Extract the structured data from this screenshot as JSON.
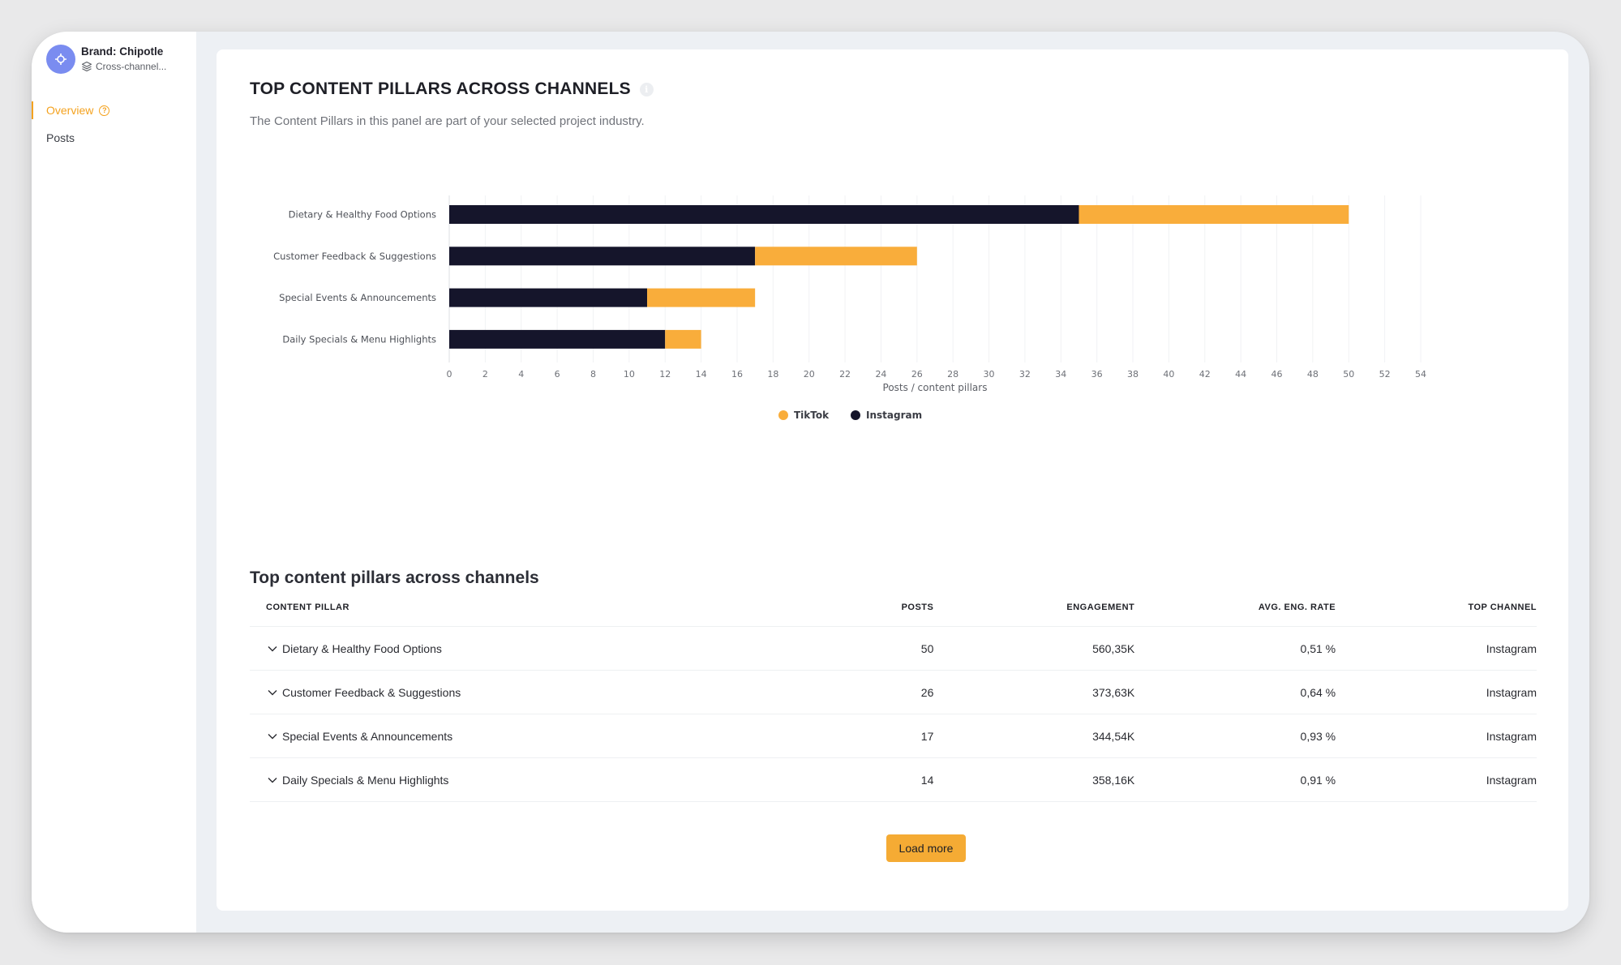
{
  "sidebar": {
    "brand_name": "Brand: Chipotle",
    "brand_sub": "Cross-channel...",
    "nav": [
      {
        "label": "Overview",
        "active": true
      },
      {
        "label": "Posts",
        "active": false
      }
    ]
  },
  "panel": {
    "title": "TOP CONTENT PILLARS ACROSS CHANNELS",
    "subtitle": "The Content Pillars in this panel are part of your selected project industry."
  },
  "chart_data": {
    "type": "bar",
    "orientation": "horizontal",
    "stacked": true,
    "categories": [
      "Dietary & Healthy Food Options",
      "Customer Feedback & Suggestions",
      "Special Events & Announcements",
      "Daily Specials & Menu Highlights"
    ],
    "series": [
      {
        "name": "Instagram",
        "color": "#15152b",
        "values": [
          35,
          17,
          11,
          12
        ]
      },
      {
        "name": "TikTok",
        "color": "#f9ad3b",
        "values": [
          15,
          9,
          6,
          2
        ]
      }
    ],
    "xlabel": "Posts / content pillars",
    "xlim": [
      0,
      54
    ],
    "xticks": [
      0,
      2,
      4,
      6,
      8,
      10,
      12,
      14,
      16,
      18,
      20,
      22,
      24,
      26,
      28,
      30,
      32,
      34,
      36,
      38,
      40,
      42,
      44,
      46,
      48,
      50,
      52,
      54
    ],
    "grid": true,
    "legend": {
      "position": "bottom",
      "entries": [
        "TikTok",
        "Instagram"
      ]
    }
  },
  "table": {
    "title": "Top content pillars across channels",
    "headers": [
      "CONTENT PILLAR",
      "POSTS",
      "ENGAGEMENT",
      "AVG. ENG. RATE",
      "TOP CHANNEL"
    ],
    "rows": [
      [
        "Dietary & Healthy Food Options",
        "50",
        "560,35K",
        "0,51 %",
        "Instagram"
      ],
      [
        "Customer Feedback & Suggestions",
        "26",
        "373,63K",
        "0,64 %",
        "Instagram"
      ],
      [
        "Special Events & Announcements",
        "17",
        "344,54K",
        "0,93 %",
        "Instagram"
      ],
      [
        "Daily Specials & Menu Highlights",
        "14",
        "358,16K",
        "0,91 %",
        "Instagram"
      ]
    ],
    "load_more": "Load more"
  },
  "colors": {
    "accent": "#f4a21f",
    "instagram": "#15152b",
    "tiktok": "#f9ad3b",
    "brand_avatar": "#7a8cf0"
  }
}
